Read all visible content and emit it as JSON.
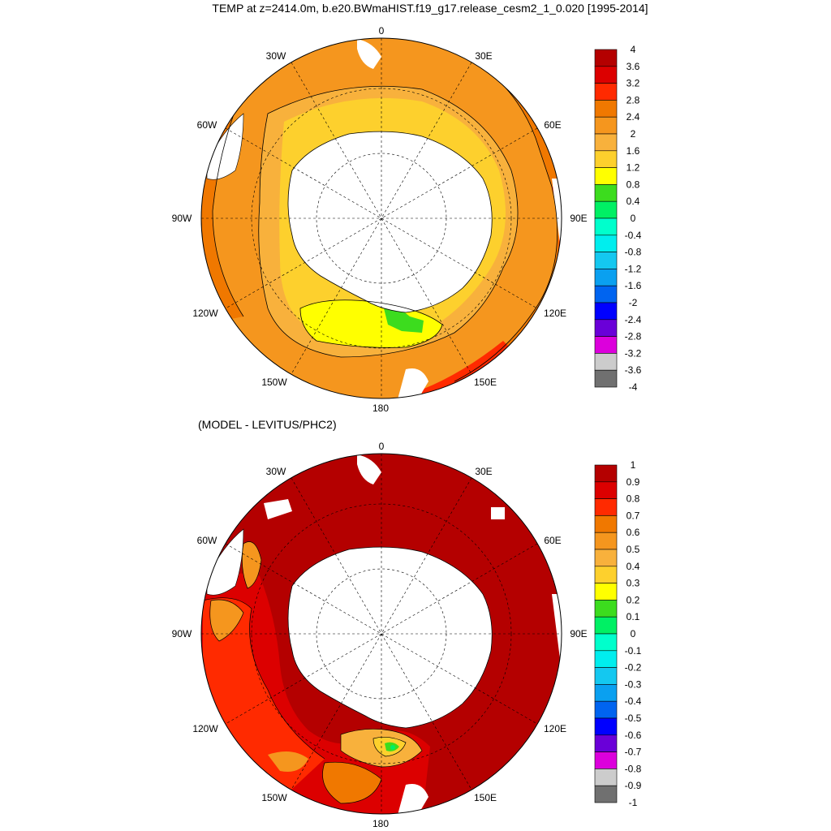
{
  "title": "TEMP at z=2414.0m, b.e20.BWmaHIST.f19_g17.release_cesm2_1_0.020 [1995-2014]",
  "subtitle": "(MODEL - LEVITUS/PHC2)",
  "longitude_labels": {
    "top": "0",
    "upper_left": "30W",
    "upper_right": "30E",
    "left_upper": "60W",
    "right_upper": "60E",
    "left": "90W",
    "right": "90E",
    "left_lower": "120W",
    "right_lower": "120E",
    "lower_left": "150W",
    "lower_right": "150E",
    "bottom": "180"
  },
  "map_top": {
    "colorbar_labels": [
      "4",
      "3.6",
      "3.2",
      "2.8",
      "2.4",
      "2",
      "1.6",
      "1.2",
      "0.8",
      "0.4",
      "0",
      "-0.4",
      "-0.8",
      "-1.2",
      "-1.6",
      "-2",
      "-2.4",
      "-2.8",
      "-3.2",
      "-3.6",
      "-4"
    ],
    "colorbar_colors": [
      "#b40000",
      "#dc0000",
      "#ff2a00",
      "#f07800",
      "#f5961e",
      "#f8b13c",
      "#fdd02d",
      "#ffff00",
      "#3cdc1e",
      "#00f064",
      "#00ffcc",
      "#00eeee",
      "#14c8f0",
      "#0aa0f0",
      "#0064f0",
      "#0000ff",
      "#6a00d8",
      "#dc00dc",
      "#cccccc",
      "#707070"
    ]
  },
  "map_bottom": {
    "colorbar_labels": [
      "1",
      "0.9",
      "0.8",
      "0.7",
      "0.6",
      "0.5",
      "0.4",
      "0.3",
      "0.2",
      "0.1",
      "0",
      "-0.1",
      "-0.2",
      "-0.3",
      "-0.4",
      "-0.5",
      "-0.6",
      "-0.7",
      "-0.8",
      "-0.9",
      "-1"
    ],
    "colorbar_colors": [
      "#b40000",
      "#dc0000",
      "#ff2a00",
      "#f07800",
      "#f5961e",
      "#f8b13c",
      "#fdd02d",
      "#ffff00",
      "#3cdc1e",
      "#00f064",
      "#00ffcc",
      "#00eeee",
      "#14c8f0",
      "#0aa0f0",
      "#0064f0",
      "#0000ff",
      "#6a00d8",
      "#dc00dc",
      "#cccccc",
      "#707070"
    ]
  }
}
